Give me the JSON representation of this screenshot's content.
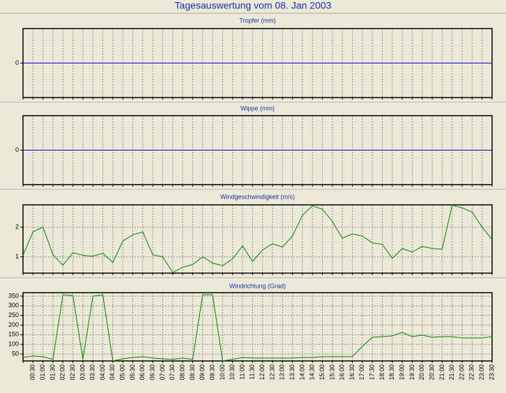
{
  "title": "Tagesauswertung vom 08. Jan 2003",
  "chart_data": [
    {
      "type": "line",
      "title": "Tropfer (mm)",
      "ylim": [
        -1,
        1
      ],
      "yticks": [
        0
      ],
      "grid": true,
      "color": "#0000c8",
      "values": [
        0,
        0,
        0,
        0,
        0,
        0,
        0,
        0,
        0,
        0,
        0,
        0,
        0,
        0,
        0,
        0,
        0,
        0,
        0,
        0,
        0,
        0,
        0,
        0,
        0,
        0,
        0,
        0,
        0,
        0,
        0,
        0,
        0,
        0,
        0,
        0,
        0,
        0,
        0,
        0,
        0,
        0,
        0,
        0,
        0,
        0,
        0,
        0
      ]
    },
    {
      "type": "line",
      "title": "Wippe (mm)",
      "ylim": [
        -1,
        1
      ],
      "yticks": [
        0
      ],
      "grid": true,
      "color": "#0000c8",
      "values": [
        0,
        0,
        0,
        0,
        0,
        0,
        0,
        0,
        0,
        0,
        0,
        0,
        0,
        0,
        0,
        0,
        0,
        0,
        0,
        0,
        0,
        0,
        0,
        0,
        0,
        0,
        0,
        0,
        0,
        0,
        0,
        0,
        0,
        0,
        0,
        0,
        0,
        0,
        0,
        0,
        0,
        0,
        0,
        0,
        0,
        0,
        0,
        0
      ]
    },
    {
      "type": "line",
      "title": "Windgeschwindigkeit (m/s)",
      "ylim": [
        0.45,
        2.75
      ],
      "yticks": [
        1,
        2
      ],
      "grid": true,
      "color": "#008000",
      "values": [
        1.05,
        1.84,
        2.0,
        1.07,
        0.72,
        1.14,
        1.05,
        1.02,
        1.12,
        0.81,
        1.53,
        1.74,
        1.84,
        1.07,
        1.0,
        0.47,
        0.65,
        0.74,
        1.0,
        0.79,
        0.7,
        0.93,
        1.37,
        0.84,
        1.23,
        1.44,
        1.33,
        1.7,
        2.4,
        2.72,
        2.6,
        2.19,
        1.63,
        1.77,
        1.7,
        1.47,
        1.42,
        0.95,
        1.28,
        1.16,
        1.35,
        1.28,
        1.26,
        2.74,
        2.65,
        2.51,
        2.0,
        1.58
      ]
    },
    {
      "type": "line",
      "title": "Windrichtung (Grad)",
      "ylim": [
        14,
        368
      ],
      "yticks": [
        50,
        100,
        150,
        200,
        250,
        300,
        350
      ],
      "grid": true,
      "color": "#008000",
      "categories": [
        null,
        "00:30",
        "01:00",
        "01:30",
        "02:00",
        "02:30",
        "03:00",
        "03:30",
        "04:00",
        "04:30",
        "05:00",
        "05:30",
        "06:00",
        "06:30",
        "07:00",
        "07:30",
        "08:00",
        "08:30",
        "09:00",
        "09:30",
        "10:00",
        "10:30",
        "11:00",
        "11:30",
        "12:00",
        "12:30",
        "13:00",
        "13:30",
        "14:00",
        "14:30",
        "15:00",
        "15:30",
        "16:00",
        "16:30",
        "17:00",
        "17:30",
        "18:00",
        "18:30",
        "19:00",
        "19:30",
        "20:00",
        "20:30",
        "21:00",
        "21:30",
        "22:00",
        "22:30",
        "23:00",
        "23:30"
      ],
      "values": [
        32,
        40,
        36,
        22,
        357,
        353,
        22,
        350,
        357,
        14,
        25,
        32,
        36,
        29,
        25,
        22,
        29,
        22,
        357,
        357,
        14,
        22,
        32,
        29,
        29,
        29,
        29,
        29,
        32,
        32,
        36,
        36,
        36,
        36,
        90,
        137,
        140,
        144,
        162,
        140,
        148,
        137,
        140,
        140,
        133,
        133,
        133,
        140
      ]
    }
  ]
}
